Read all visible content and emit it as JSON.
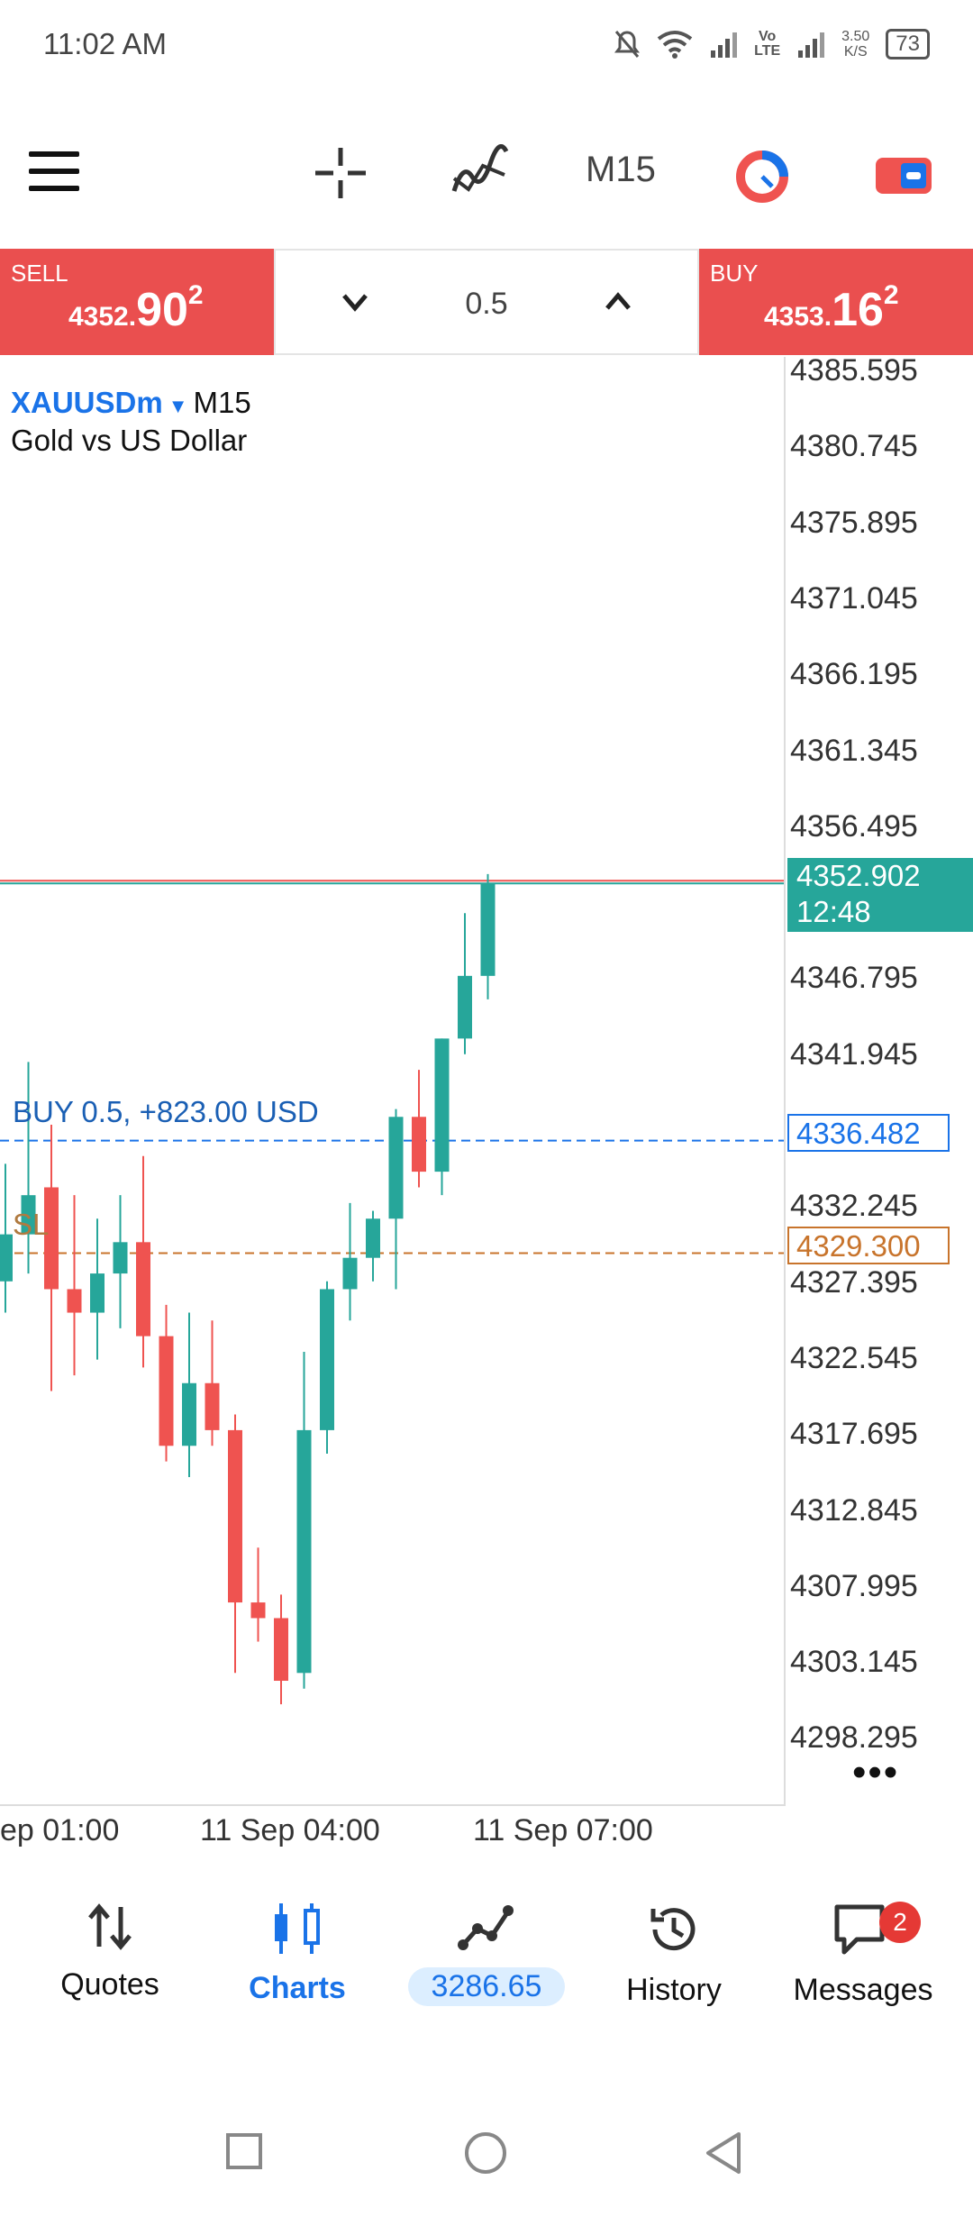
{
  "status_bar": {
    "time": "11:02 AM",
    "network_label_1": "Vo\nLTE",
    "speed": "3.50\nK/S",
    "battery": "73"
  },
  "toolbar": {
    "timeframe": "M15"
  },
  "trade_panel": {
    "sell_label": "SELL",
    "sell_price_small": "4352.",
    "sell_price_big": "90",
    "sell_price_sup": "2",
    "buy_label": "BUY",
    "buy_price_small": "4353.",
    "buy_price_big": "16",
    "buy_price_sup": "2",
    "volume": "0.5"
  },
  "chart": {
    "symbol": "XAUUSDm",
    "timeframe": "M15",
    "description": "Gold vs US Dollar",
    "current_price": "4352.902",
    "countdown": "12:48",
    "position_label": "BUY 0.5,  +823.00 USD",
    "position_price": "4336.482",
    "sl_label": "SL",
    "sl_price": "4329.300",
    "price_axis": [
      "4385.595",
      "4380.745",
      "4375.895",
      "4371.045",
      "4366.195",
      "4361.345",
      "4356.495",
      "4346.795",
      "4341.945",
      "4332.245",
      "4327.395",
      "4322.545",
      "4317.695",
      "4312.845",
      "4307.995",
      "4303.145",
      "4298.295"
    ],
    "time_axis": [
      "ep 01:00",
      "11 Sep 04:00",
      "11 Sep 07:00"
    ],
    "colors": {
      "up": "#26a69a",
      "down": "#ef5350",
      "position": "#1a73e8",
      "sl": "#c8742c"
    }
  },
  "chart_data": {
    "type": "candlestick",
    "ylim": [
      4296,
      4387
    ],
    "candles": [
      {
        "o": 4327.5,
        "h": 4335.0,
        "l": 4325.5,
        "c": 4330.5
      },
      {
        "o": 4330.5,
        "h": 4341.5,
        "l": 4328.0,
        "c": 4333.0
      },
      {
        "o": 4333.5,
        "h": 4337.5,
        "l": 4320.5,
        "c": 4327.0
      },
      {
        "o": 4327.0,
        "h": 4333.0,
        "l": 4321.5,
        "c": 4325.5
      },
      {
        "o": 4325.5,
        "h": 4331.5,
        "l": 4322.5,
        "c": 4328.0
      },
      {
        "o": 4328.0,
        "h": 4333.0,
        "l": 4324.5,
        "c": 4330.0
      },
      {
        "o": 4330.0,
        "h": 4335.5,
        "l": 4322.0,
        "c": 4324.0
      },
      {
        "o": 4324.0,
        "h": 4326.0,
        "l": 4316.0,
        "c": 4317.0
      },
      {
        "o": 4317.0,
        "h": 4325.5,
        "l": 4315.0,
        "c": 4321.0
      },
      {
        "o": 4321.0,
        "h": 4325.0,
        "l": 4317.0,
        "c": 4318.0
      },
      {
        "o": 4318.0,
        "h": 4319.0,
        "l": 4302.5,
        "c": 4307.0
      },
      {
        "o": 4307.0,
        "h": 4310.5,
        "l": 4304.5,
        "c": 4306.0
      },
      {
        "o": 4306.0,
        "h": 4307.5,
        "l": 4300.5,
        "c": 4302.0
      },
      {
        "o": 4302.5,
        "h": 4323.0,
        "l": 4301.5,
        "c": 4318.0
      },
      {
        "o": 4318.0,
        "h": 4327.5,
        "l": 4316.5,
        "c": 4327.0
      },
      {
        "o": 4327.0,
        "h": 4332.5,
        "l": 4325.0,
        "c": 4329.0
      },
      {
        "o": 4329.0,
        "h": 4332.0,
        "l": 4327.5,
        "c": 4331.5
      },
      {
        "o": 4331.5,
        "h": 4338.5,
        "l": 4327.0,
        "c": 4338.0
      },
      {
        "o": 4338.0,
        "h": 4341.0,
        "l": 4333.5,
        "c": 4334.5
      },
      {
        "o": 4334.5,
        "h": 4343.0,
        "l": 4333.0,
        "c": 4343.0
      },
      {
        "o": 4343.0,
        "h": 4351.0,
        "l": 4342.0,
        "c": 4347.0
      },
      {
        "o": 4347.0,
        "h": 4353.5,
        "l": 4345.5,
        "c": 4352.9
      }
    ]
  },
  "bottom_nav": {
    "quotes": "Quotes",
    "charts": "Charts",
    "trade_balance": "3286.65",
    "history": "History",
    "messages": "Messages",
    "messages_badge": "2"
  }
}
